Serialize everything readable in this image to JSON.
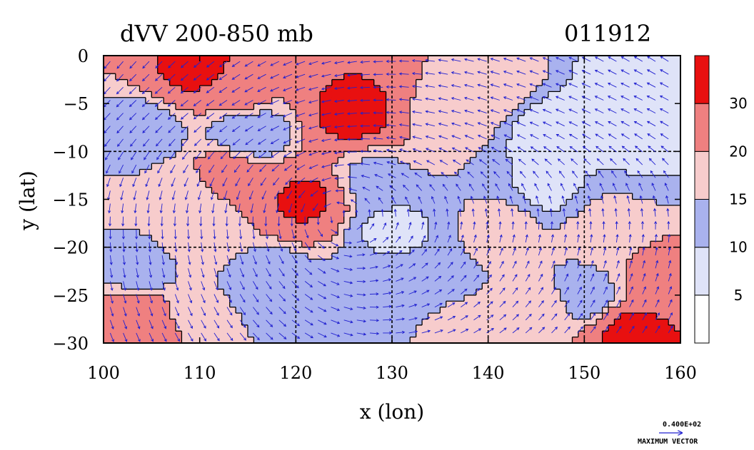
{
  "title_left": "dVV 200-850 mb",
  "title_right": "011912",
  "x_axis_label": "x (lon)",
  "y_axis_label": "y (lat)",
  "vector_scale_value": "0.400E+02",
  "vector_scale_label": "MAXIMUM VECTOR",
  "colors": {
    "c0": "#ffffff",
    "c1": "#dfe3f8",
    "c2": "#a9b2ee",
    "c3": "#f7cccc",
    "c4": "#ef8080",
    "c5": "#e81010",
    "contour": "#000000",
    "vector": "#2020d0",
    "grid": "#000000"
  },
  "chart_data": {
    "type": "heatmap",
    "title": "dVV 200-850 mb",
    "subtitle": "011912",
    "xlabel": "x (lon)",
    "ylabel": "y (lat)",
    "xlim": [
      100,
      160
    ],
    "ylim": [
      -30,
      0
    ],
    "x_ticks": [
      "100",
      "110",
      "120",
      "130",
      "140",
      "150",
      "160"
    ],
    "y_ticks": [
      "0",
      "-5",
      "-10",
      "-15",
      "-20",
      "-25",
      "-30"
    ],
    "gridlines_lon": [
      120,
      130,
      140,
      150
    ],
    "gridlines_lat": [
      -10,
      -20
    ],
    "grid": "dashed",
    "colorbar_levels": [
      0,
      5,
      10,
      15,
      20,
      30,
      35
    ],
    "colorbar_labels": [
      "5",
      "10",
      "15",
      "20",
      "30"
    ],
    "overlay": "wind vectors",
    "max_vector": 40,
    "regions": [
      {
        "lon": 110,
        "lat": -1.5,
        "value": 32
      },
      {
        "lon": 114,
        "lat": -4,
        "value": 22
      },
      {
        "lon": 126,
        "lat": -6,
        "value": 32
      },
      {
        "lon": 136,
        "lat": -6,
        "value": 18
      },
      {
        "lon": 140,
        "lat": -3,
        "value": 20
      },
      {
        "lon": 155,
        "lat": -3,
        "value": 8
      },
      {
        "lon": 147,
        "lat": -8,
        "value": 6
      },
      {
        "lon": 157,
        "lat": -9,
        "value": 9
      },
      {
        "lon": 104,
        "lat": -8,
        "value": 12
      },
      {
        "lon": 108,
        "lat": -15,
        "value": 17
      },
      {
        "lon": 113,
        "lat": -12,
        "value": 22
      },
      {
        "lon": 110,
        "lat": -19,
        "value": 18
      },
      {
        "lon": 104,
        "lat": -22,
        "value": 13
      },
      {
        "lon": 121,
        "lat": -15,
        "value": 31
      },
      {
        "lon": 128,
        "lat": -13,
        "value": 14
      },
      {
        "lon": 130,
        "lat": -18,
        "value": 9
      },
      {
        "lon": 133,
        "lat": -24,
        "value": 12
      },
      {
        "lon": 142,
        "lat": -18,
        "value": 17
      },
      {
        "lon": 146,
        "lat": -14,
        "value": 9
      },
      {
        "lon": 152,
        "lat": -18,
        "value": 17
      },
      {
        "lon": 158,
        "lat": -23,
        "value": 22
      },
      {
        "lon": 146,
        "lat": -26,
        "value": 16
      },
      {
        "lon": 155,
        "lat": -29,
        "value": 32
      },
      {
        "lon": 104,
        "lat": -28,
        "value": 26
      },
      {
        "lon": 110,
        "lat": -27,
        "value": 17
      },
      {
        "lon": 117,
        "lat": -24,
        "value": 10
      },
      {
        "lon": 124,
        "lat": -27,
        "value": 14
      },
      {
        "lon": 137,
        "lat": -28,
        "value": 16
      },
      {
        "lon": 115,
        "lat": -8,
        "value": 10
      },
      {
        "lon": 150,
        "lat": -25,
        "value": 13
      }
    ]
  }
}
